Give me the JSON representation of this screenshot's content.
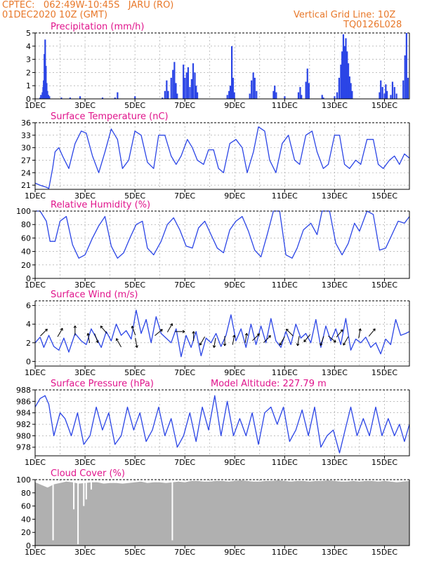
{
  "header": {
    "line1": "CPTEC:   062:49W-10:45S   JARU (RO)",
    "line2": "01DEC2020 10Z (GMT)",
    "grid_note": "Vertical Grid Line: 10Z",
    "code": "TQ0126L028"
  },
  "colors": {
    "header": "#e8782a",
    "title": "#e0158c",
    "series": "#2b45e6",
    "cloud": "#b0b0b0",
    "arrow": "#000000"
  },
  "x_axis": {
    "days": [
      "1DEC",
      "3DEC",
      "5DEC",
      "7DEC",
      "9DEC",
      "11DEC",
      "13DEC",
      "15DEC"
    ],
    "range_days": [
      0,
      15
    ]
  },
  "chart_data": [
    {
      "type": "bar",
      "title": "Precipitation (mm/h)",
      "ylim": [
        0,
        5
      ],
      "yticks": [
        0,
        1,
        2,
        3,
        4,
        5
      ],
      "bars": [
        [
          0.2,
          0.1
        ],
        [
          0.23,
          0.3
        ],
        [
          0.29,
          0.5
        ],
        [
          0.32,
          0.9
        ],
        [
          0.34,
          1.4
        ],
        [
          0.37,
          3.4
        ],
        [
          0.4,
          4.5
        ],
        [
          0.43,
          2.5
        ],
        [
          0.46,
          1.2
        ],
        [
          0.49,
          0.6
        ],
        [
          0.53,
          0.3
        ],
        [
          0.57,
          0.2
        ],
        [
          1.05,
          0.1
        ],
        [
          1.4,
          0.1
        ],
        [
          1.8,
          0.2
        ],
        [
          2.7,
          0.1
        ],
        [
          3.2,
          0.1
        ],
        [
          3.3,
          0.5
        ],
        [
          4.0,
          0.2
        ],
        [
          5.1,
          0.1
        ],
        [
          5.2,
          0.6
        ],
        [
          5.27,
          1.4
        ],
        [
          5.33,
          0.6
        ],
        [
          5.45,
          1.6
        ],
        [
          5.52,
          2.2
        ],
        [
          5.58,
          2.8
        ],
        [
          5.64,
          1.2
        ],
        [
          5.69,
          0.4
        ],
        [
          5.94,
          2.6
        ],
        [
          6.0,
          1.6
        ],
        [
          6.07,
          2.0
        ],
        [
          6.13,
          2.4
        ],
        [
          6.2,
          0.9
        ],
        [
          6.27,
          1.5
        ],
        [
          6.33,
          2.7
        ],
        [
          6.4,
          2.0
        ],
        [
          6.45,
          1.0
        ],
        [
          6.5,
          0.5
        ],
        [
          7.7,
          0.3
        ],
        [
          7.77,
          0.6
        ],
        [
          7.82,
          1.0
        ],
        [
          7.88,
          4.0
        ],
        [
          7.93,
          1.6
        ],
        [
          7.98,
          0.5
        ],
        [
          8.6,
          0.4
        ],
        [
          8.67,
          1.4
        ],
        [
          8.74,
          2.0
        ],
        [
          8.8,
          1.6
        ],
        [
          8.87,
          0.6
        ],
        [
          9.55,
          0.6
        ],
        [
          9.6,
          1.0
        ],
        [
          9.66,
          0.5
        ],
        [
          10.0,
          0.2
        ],
        [
          10.55,
          0.5
        ],
        [
          10.62,
          0.9
        ],
        [
          10.67,
          0.3
        ],
        [
          10.85,
          1.3
        ],
        [
          10.91,
          2.3
        ],
        [
          10.97,
          1.2
        ],
        [
          11.5,
          0.3
        ],
        [
          11.55,
          0.1
        ],
        [
          12.0,
          0.2
        ],
        [
          12.1,
          0.5
        ],
        [
          12.18,
          1.6
        ],
        [
          12.25,
          2.6
        ],
        [
          12.3,
          3.6
        ],
        [
          12.35,
          4.9
        ],
        [
          12.4,
          4.0
        ],
        [
          12.45,
          4.6
        ],
        [
          12.5,
          3.6
        ],
        [
          12.55,
          2.7
        ],
        [
          12.6,
          1.7
        ],
        [
          12.65,
          1.2
        ],
        [
          12.7,
          0.6
        ],
        [
          13.8,
          0.5
        ],
        [
          13.85,
          1.4
        ],
        [
          13.92,
          0.9
        ],
        [
          14.0,
          0.4
        ],
        [
          14.05,
          1.1
        ],
        [
          14.1,
          0.6
        ],
        [
          14.25,
          0.3
        ],
        [
          14.32,
          1.3
        ],
        [
          14.4,
          0.9
        ],
        [
          14.48,
          0.4
        ],
        [
          14.75,
          1.4
        ],
        [
          14.82,
          3.3
        ],
        [
          14.88,
          5.0
        ],
        [
          14.94,
          1.6
        ]
      ]
    },
    {
      "type": "line",
      "title": "Surface Temperature (nC)",
      "ylim": [
        20,
        36
      ],
      "yticks": [
        21,
        24,
        27,
        30,
        33,
        36
      ],
      "x": [
        0,
        0.2,
        0.45,
        0.55,
        0.7,
        0.8,
        0.95,
        1.1,
        1.35,
        1.6,
        1.85,
        2.05,
        2.3,
        2.55,
        2.8,
        3.05,
        3.3,
        3.5,
        3.75,
        4.0,
        4.25,
        4.5,
        4.75,
        4.95,
        5.2,
        5.45,
        5.65,
        5.85,
        6.1,
        6.3,
        6.5,
        6.75,
        6.95,
        7.15,
        7.35,
        7.55,
        7.8,
        8.05,
        8.3,
        8.5,
        8.75,
        8.95,
        9.2,
        9.4,
        9.65,
        9.9,
        10.15,
        10.4,
        10.6,
        10.85,
        11.1,
        11.3,
        11.55,
        11.75,
        12.0,
        12.2,
        12.4,
        12.6,
        12.85,
        13.05,
        13.3,
        13.55,
        13.75,
        13.95,
        14.2,
        14.4,
        14.6,
        14.8,
        15.0
      ],
      "values": [
        21.5,
        21,
        20.5,
        20.2,
        25,
        29,
        30,
        28,
        25,
        31,
        34,
        33.5,
        28,
        24,
        29,
        34.5,
        32,
        25,
        27,
        34,
        33,
        26.5,
        25,
        33,
        33,
        28,
        26,
        28,
        32,
        30,
        27,
        26,
        29.5,
        29.5,
        25,
        24,
        31,
        32,
        30,
        24,
        29,
        35,
        34,
        27,
        24,
        31,
        33,
        27,
        26,
        33,
        34,
        29,
        25,
        26,
        33,
        33,
        26,
        25,
        27,
        26,
        32,
        32,
        26,
        25,
        27,
        28,
        26,
        28.5,
        27.5
      ]
    },
    {
      "type": "line",
      "title": "Relative Humidity (%)",
      "ylim": [
        0,
        100
      ],
      "yticks": [
        0,
        20,
        40,
        60,
        80,
        100
      ],
      "x": [
        0,
        0.2,
        0.45,
        0.6,
        0.8,
        1.0,
        1.25,
        1.5,
        1.75,
        2.0,
        2.3,
        2.55,
        2.8,
        3.05,
        3.3,
        3.55,
        3.8,
        4.05,
        4.3,
        4.5,
        4.75,
        5.05,
        5.3,
        5.55,
        5.8,
        6.05,
        6.3,
        6.55,
        6.8,
        7.05,
        7.3,
        7.55,
        7.8,
        8.05,
        8.3,
        8.55,
        8.8,
        9.05,
        9.3,
        9.55,
        9.8,
        10.05,
        10.3,
        10.5,
        10.75,
        11.05,
        11.3,
        11.5,
        11.8,
        12.05,
        12.3,
        12.55,
        12.8,
        13.0,
        13.3,
        13.55,
        13.8,
        14.05,
        14.3,
        14.55,
        14.8,
        15.0
      ],
      "values": [
        100,
        100,
        85,
        55,
        55,
        85,
        92,
        50,
        30,
        35,
        60,
        78,
        92,
        48,
        30,
        38,
        60,
        80,
        85,
        45,
        35,
        55,
        80,
        90,
        72,
        48,
        45,
        75,
        85,
        65,
        45,
        38,
        72,
        85,
        92,
        70,
        42,
        32,
        65,
        100,
        100,
        35,
        30,
        45,
        72,
        82,
        65,
        100,
        100,
        52,
        35,
        52,
        82,
        70,
        100,
        95,
        42,
        45,
        65,
        85,
        82,
        92
      ]
    },
    {
      "type": "line",
      "title": "Surface Wind (m/s)",
      "ylim": [
        -0.5,
        6.5
      ],
      "yticks": [
        0,
        2,
        4,
        6
      ],
      "x": [
        0,
        0.2,
        0.35,
        0.55,
        0.75,
        0.95,
        1.15,
        1.35,
        1.6,
        1.85,
        2.05,
        2.25,
        2.45,
        2.65,
        2.85,
        3.05,
        3.25,
        3.45,
        3.65,
        3.85,
        4.05,
        4.25,
        4.45,
        4.65,
        4.85,
        5.05,
        5.25,
        5.45,
        5.65,
        5.85,
        6.05,
        6.25,
        6.45,
        6.65,
        6.85,
        7.05,
        7.25,
        7.45,
        7.65,
        7.85,
        8.05,
        8.25,
        8.45,
        8.65,
        8.85,
        9.05,
        9.25,
        9.45,
        9.65,
        9.85,
        10.05,
        10.25,
        10.45,
        10.65,
        10.85,
        11.05,
        11.25,
        11.45,
        11.65,
        11.85,
        12.05,
        12.25,
        12.45,
        12.65,
        12.85,
        13.05,
        13.25,
        13.45,
        13.65,
        13.85,
        14.05,
        14.25,
        14.45,
        14.65,
        14.85,
        15.0
      ],
      "values": [
        2.0,
        2.6,
        1.5,
        2.8,
        1.6,
        1.2,
        2.5,
        1.0,
        3.0,
        2.2,
        1.8,
        3.5,
        2.5,
        1.5,
        3.2,
        2.2,
        4.0,
        2.8,
        3.3,
        2.4,
        5.5,
        3.0,
        4.5,
        2.0,
        4.8,
        3.0,
        2.5,
        2.0,
        3.5,
        0.5,
        2.8,
        1.5,
        3.2,
        0.6,
        2.5,
        2.0,
        3.0,
        1.6,
        2.8,
        5.0,
        2.2,
        3.5,
        1.5,
        4.0,
        1.8,
        3.8,
        2.0,
        4.6,
        2.2,
        1.5,
        3.2,
        1.8,
        4.0,
        2.5,
        3.0,
        2.0,
        4.5,
        1.5,
        3.8,
        2.2,
        3.5,
        1.8,
        4.6,
        1.2,
        2.4,
        2.0,
        2.6,
        1.5,
        2.0,
        0.8,
        2.4,
        1.8,
        4.5,
        2.8,
        3.0,
        3.2
      ],
      "arrows": [
        [
          0.35,
          3.1,
          -45
        ],
        [
          1.0,
          3.1,
          -60
        ],
        [
          1.6,
          3.3,
          -90
        ],
        [
          2.15,
          2.5,
          -100
        ],
        [
          2.45,
          2.5,
          70
        ],
        [
          2.75,
          3.4,
          -130
        ],
        [
          3.35,
          2.0,
          -120
        ],
        [
          3.95,
          3.3,
          -110
        ],
        [
          4.05,
          2.0,
          80
        ],
        [
          4.95,
          3.1,
          -40
        ],
        [
          5.4,
          3.6,
          -60
        ],
        [
          5.8,
          3.2,
          0
        ],
        [
          6.35,
          2.7,
          -90
        ],
        [
          6.7,
          2.2,
          120
        ],
        [
          7.2,
          2.0,
          100
        ],
        [
          7.6,
          2.2,
          90
        ],
        [
          7.95,
          2.3,
          -80
        ],
        [
          8.45,
          2.5,
          -80
        ],
        [
          8.85,
          2.6,
          -45
        ],
        [
          9.3,
          2.4,
          -45
        ],
        [
          9.9,
          2.2,
          120
        ],
        [
          10.2,
          3.1,
          -135
        ],
        [
          10.55,
          2.2,
          100
        ],
        [
          10.9,
          2.5,
          130
        ],
        [
          11.5,
          2.2,
          110
        ],
        [
          11.9,
          2.4,
          40
        ],
        [
          12.2,
          3.0,
          -50
        ],
        [
          12.45,
          2.2,
          120
        ],
        [
          13.0,
          3.0,
          -80
        ],
        [
          13.5,
          3.1,
          -50
        ]
      ]
    },
    {
      "type": "line",
      "title": "Surface Pressure (hPa)",
      "annotation": "Model Altitude: 227.79 m",
      "ylim": [
        976.5,
        988
      ],
      "yticks": [
        978,
        980,
        982,
        984,
        986,
        988
      ],
      "x": [
        0,
        0.2,
        0.4,
        0.55,
        0.75,
        1.0,
        1.2,
        1.45,
        1.7,
        1.95,
        2.2,
        2.45,
        2.7,
        2.95,
        3.2,
        3.45,
        3.7,
        3.95,
        4.2,
        4.45,
        4.7,
        4.95,
        5.2,
        5.45,
        5.7,
        5.95,
        6.2,
        6.45,
        6.7,
        6.95,
        7.2,
        7.45,
        7.7,
        7.95,
        8.2,
        8.45,
        8.7,
        8.95,
        9.2,
        9.45,
        9.7,
        9.95,
        10.2,
        10.45,
        10.7,
        10.95,
        11.2,
        11.45,
        11.7,
        11.95,
        12.2,
        12.45,
        12.65,
        12.9,
        13.15,
        13.4,
        13.65,
        13.9,
        14.15,
        14.4,
        14.6,
        14.8,
        15.0
      ],
      "values": [
        985,
        986.5,
        987,
        985.5,
        980,
        984,
        983,
        980,
        984,
        978.5,
        980,
        985,
        981,
        984,
        978.5,
        980,
        985,
        981,
        984,
        979,
        981,
        985,
        980,
        983,
        978,
        980,
        984,
        979,
        985,
        981,
        987,
        980,
        986,
        980,
        983,
        980,
        984,
        978.5,
        984,
        985,
        982,
        985,
        979,
        981,
        984.5,
        980,
        985,
        978,
        980,
        981,
        977,
        981.5,
        985,
        980,
        983,
        980,
        985,
        980,
        983,
        980,
        982,
        979,
        982
      ]
    },
    {
      "type": "area",
      "title": "Cloud Cover (%)",
      "ylim": [
        0,
        100
      ],
      "yticks": [
        0,
        20,
        40,
        60,
        80,
        100
      ],
      "x": [
        0,
        0.25,
        0.5,
        0.75,
        1.0,
        1.25,
        1.5,
        1.75,
        2.0,
        2.25,
        2.5,
        2.75,
        3.0,
        3.25,
        3.5,
        3.75,
        4.0,
        4.25,
        4.5,
        4.75,
        5.0,
        5.25,
        5.5,
        5.75,
        6.0,
        6.25,
        6.5,
        6.75,
        7.0,
        7.25,
        7.5,
        7.75,
        8.0,
        8.25,
        8.5,
        8.75,
        9.0,
        9.25,
        9.5,
        9.75,
        10.0,
        10.25,
        10.5,
        10.75,
        11.0,
        11.25,
        11.5,
        11.75,
        12.0,
        12.25,
        12.5,
        12.75,
        13.0,
        13.25,
        13.5,
        13.75,
        14.0,
        14.25,
        14.5,
        14.75,
        15.0
      ],
      "values": [
        96,
        92,
        88,
        93,
        95,
        97,
        96,
        94,
        95,
        96,
        96,
        94,
        95,
        95,
        94,
        95,
        96,
        97,
        95,
        96,
        96,
        95,
        96,
        97,
        96,
        98,
        98,
        97,
        97,
        98,
        98,
        97,
        98,
        99,
        98,
        97,
        97,
        98,
        98,
        99,
        98,
        97,
        98,
        98,
        97,
        98,
        98,
        99,
        98,
        97,
        97,
        98,
        97,
        98,
        98,
        97,
        98,
        97,
        96,
        97,
        98
      ],
      "dips": [
        [
          0.72,
          8
        ],
        [
          1.72,
          2
        ],
        [
          1.55,
          55
        ],
        [
          1.95,
          60
        ],
        [
          2.05,
          70
        ],
        [
          2.25,
          85
        ],
        [
          5.5,
          8
        ]
      ]
    }
  ]
}
